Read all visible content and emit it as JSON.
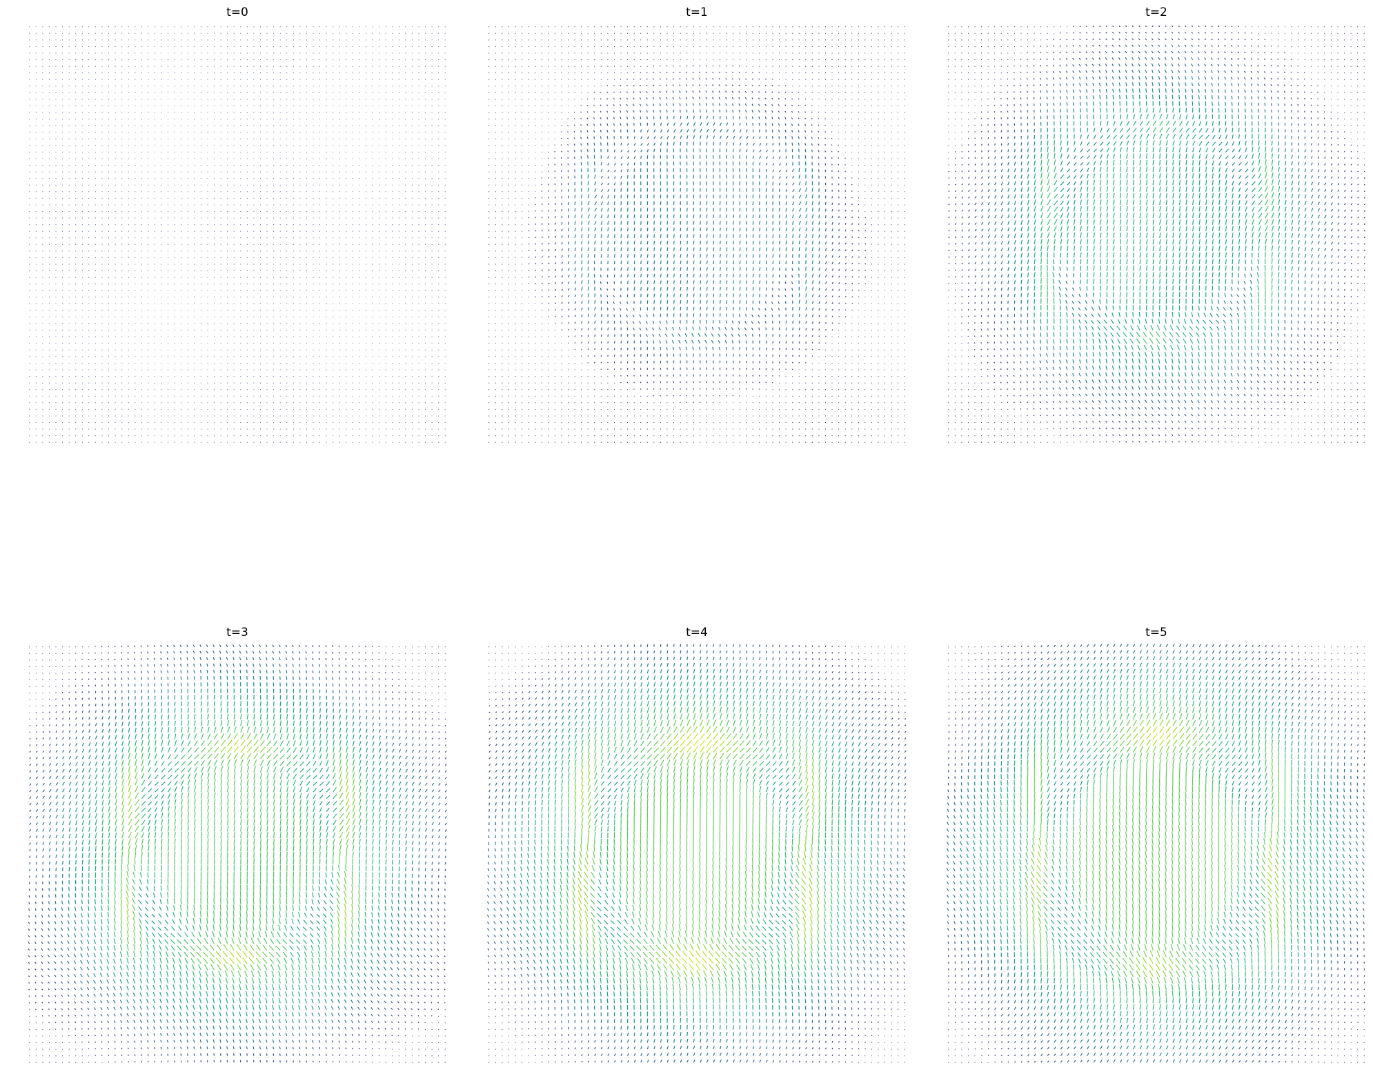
{
  "chart_data": [
    {
      "type": "quiver",
      "title": "t=0",
      "axes": "off",
      "grid": false,
      "colormap": "viridis",
      "field": {
        "t": 0,
        "amplitude": 0.0,
        "ring_radius": 0.5,
        "ring_width": 0.05,
        "wave_extent": 0.0
      }
    },
    {
      "type": "quiver",
      "title": "t=1",
      "axes": "off",
      "grid": false,
      "colormap": "viridis",
      "field": {
        "t": 1,
        "amplitude": 0.55,
        "ring_radius": 0.5,
        "ring_width": 0.06,
        "wave_extent": 0.45
      }
    },
    {
      "type": "quiver",
      "title": "t=2",
      "axes": "off",
      "grid": false,
      "colormap": "viridis",
      "field": {
        "t": 2,
        "amplitude": 0.8,
        "ring_radius": 0.5,
        "ring_width": 0.07,
        "wave_extent": 0.75
      }
    },
    {
      "type": "quiver",
      "title": "t=3",
      "axes": "off",
      "grid": false,
      "colormap": "viridis",
      "field": {
        "t": 3,
        "amplitude": 0.95,
        "ring_radius": 0.5,
        "ring_width": 0.08,
        "wave_extent": 0.95
      }
    },
    {
      "type": "quiver",
      "title": "t=4",
      "axes": "off",
      "grid": false,
      "colormap": "viridis",
      "field": {
        "t": 4,
        "amplitude": 1.0,
        "ring_radius": 0.52,
        "ring_width": 0.09,
        "wave_extent": 1.0
      }
    },
    {
      "type": "quiver",
      "title": "t=5",
      "axes": "off",
      "grid": false,
      "colormap": "viridis",
      "field": {
        "t": 5,
        "amplitude": 1.0,
        "ring_radius": 0.55,
        "ring_width": 0.1,
        "wave_extent": 1.0
      }
    }
  ]
}
